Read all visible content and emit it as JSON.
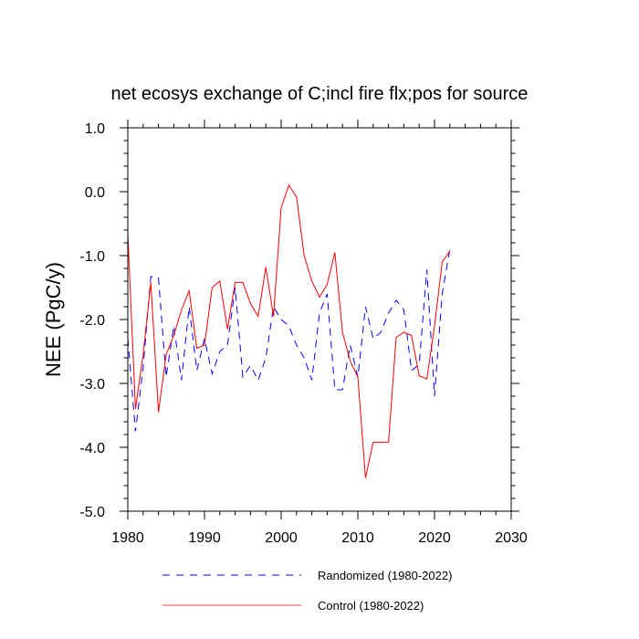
{
  "chart_data": {
    "type": "line",
    "title": "net ecosys exchange of C;incl fire flx;pos for source",
    "xlabel": "",
    "ylabel": "NEE  (PgC/y)",
    "xlim": [
      1980,
      2030
    ],
    "ylim": [
      -5.0,
      1.0
    ],
    "x_ticks": [
      "1980",
      "1990",
      "2000",
      "2010",
      "2020",
      "2030"
    ],
    "y_ticks": [
      "1.0",
      "0.0",
      "-1.0",
      "-2.0",
      "-3.0",
      "-4.0",
      "-5.0"
    ],
    "grid": false,
    "legend_position": "bottom",
    "x": [
      1980,
      1981,
      1982,
      1983,
      1984,
      1985,
      1986,
      1987,
      1988,
      1989,
      1990,
      1991,
      1992,
      1993,
      1994,
      1995,
      1996,
      1997,
      1998,
      1999,
      2000,
      2001,
      2002,
      2003,
      2004,
      2005,
      2006,
      2007,
      2008,
      2009,
      2010,
      2011,
      2012,
      2013,
      2014,
      2015,
      2016,
      2017,
      2018,
      2019,
      2020,
      2021,
      2022
    ],
    "series": [
      {
        "name": "Randomized (1980-2022)",
        "color": "#0000ff",
        "style": "dashed",
        "values": [
          -2.3,
          -3.75,
          -2.75,
          -1.33,
          -1.35,
          -2.9,
          -2.1,
          -2.95,
          -1.8,
          -2.8,
          -2.3,
          -2.85,
          -2.5,
          -2.4,
          -1.5,
          -2.9,
          -2.72,
          -2.95,
          -2.6,
          -1.8,
          -2.0,
          -2.1,
          -2.4,
          -2.6,
          -2.95,
          -1.9,
          -1.6,
          -3.1,
          -3.1,
          -2.4,
          -2.9,
          -1.8,
          -2.3,
          -2.2,
          -1.9,
          -1.7,
          -1.85,
          -2.8,
          -2.7,
          -1.22,
          -3.2,
          -1.6,
          -0.9
        ]
      },
      {
        "name": "Control (1980-2022)",
        "color": "#ff0000",
        "style": "solid",
        "values": [
          -0.65,
          -3.4,
          -2.55,
          -1.42,
          -3.45,
          -2.55,
          -2.25,
          -1.85,
          -1.55,
          -2.45,
          -2.4,
          -1.5,
          -1.4,
          -2.15,
          -1.42,
          -1.42,
          -1.75,
          -1.95,
          -1.18,
          -1.95,
          -0.25,
          0.1,
          -0.08,
          -1.0,
          -1.4,
          -1.65,
          -1.45,
          -0.95,
          -2.2,
          -2.65,
          -2.9,
          -4.48,
          -3.92,
          -3.92,
          -3.92,
          -2.28,
          -2.2,
          -2.25,
          -2.88,
          -2.93,
          -2.1,
          -1.1,
          -0.93
        ]
      }
    ]
  }
}
